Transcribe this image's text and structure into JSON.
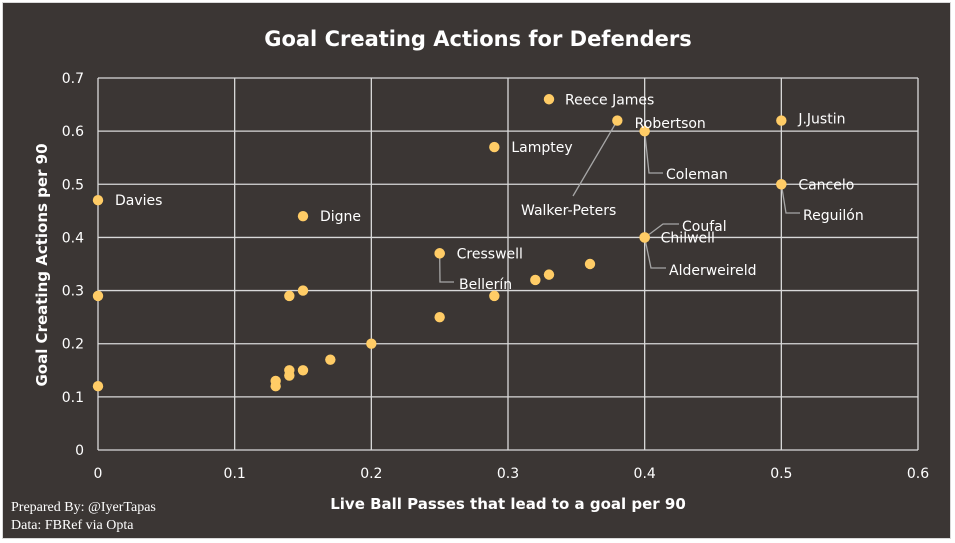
{
  "chart_data": {
    "type": "scatter",
    "title": "Goal Creating Actions for Defenders",
    "xlabel": "Live Ball Passes that lead to a goal per 90",
    "ylabel": "Goal Creating Actions per 90",
    "xlim": [
      0,
      0.6
    ],
    "ylim": [
      0,
      0.7
    ],
    "x_ticks": [
      "0",
      "0.1",
      "0.2",
      "0.3",
      "0.4",
      "0.5",
      "0.6"
    ],
    "y_ticks": [
      "0",
      "0.1",
      "0.2",
      "0.3",
      "0.4",
      "0.5",
      "0.6",
      "0.7"
    ],
    "grid": true,
    "marker_color": "#ffcc66",
    "points": [
      {
        "x": 0.33,
        "y": 0.66,
        "label": "Reece James"
      },
      {
        "x": 0.38,
        "y": 0.62,
        "label": "Walker-Peters"
      },
      {
        "x": 0.4,
        "y": 0.6,
        "label": "Robertson"
      },
      {
        "x": 0.5,
        "y": 0.62,
        "label": "J.Justin"
      },
      {
        "x": 0.29,
        "y": 0.57,
        "label": "Lamptey"
      },
      {
        "x": 0.4,
        "y": 0.6,
        "label": "Coleman"
      },
      {
        "x": 0.5,
        "y": 0.5,
        "label": "Cancelo"
      },
      {
        "x": 0.5,
        "y": 0.5,
        "label": "Reguilón"
      },
      {
        "x": 0.0,
        "y": 0.47,
        "label": "Davies"
      },
      {
        "x": 0.15,
        "y": 0.44,
        "label": "Digne"
      },
      {
        "x": 0.4,
        "y": 0.4,
        "label": "Coufal"
      },
      {
        "x": 0.4,
        "y": 0.4,
        "label": "Chilwell"
      },
      {
        "x": 0.4,
        "y": 0.4,
        "label": "Alderweireld"
      },
      {
        "x": 0.25,
        "y": 0.37,
        "label": "Cresswell"
      },
      {
        "x": 0.25,
        "y": 0.37,
        "label": "Bellerín"
      },
      {
        "x": 0.36,
        "y": 0.35,
        "label": ""
      },
      {
        "x": 0.33,
        "y": 0.33,
        "label": ""
      },
      {
        "x": 0.32,
        "y": 0.32,
        "label": ""
      },
      {
        "x": 0.15,
        "y": 0.3,
        "label": ""
      },
      {
        "x": 0.14,
        "y": 0.29,
        "label": ""
      },
      {
        "x": 0.29,
        "y": 0.29,
        "label": ""
      },
      {
        "x": 0.0,
        "y": 0.29,
        "label": ""
      },
      {
        "x": 0.25,
        "y": 0.25,
        "label": ""
      },
      {
        "x": 0.2,
        "y": 0.2,
        "label": ""
      },
      {
        "x": 0.17,
        "y": 0.17,
        "label": ""
      },
      {
        "x": 0.14,
        "y": 0.15,
        "label": ""
      },
      {
        "x": 0.15,
        "y": 0.15,
        "label": ""
      },
      {
        "x": 0.14,
        "y": 0.14,
        "label": ""
      },
      {
        "x": 0.13,
        "y": 0.13,
        "label": ""
      },
      {
        "x": 0.13,
        "y": 0.12,
        "label": ""
      },
      {
        "x": 0.0,
        "y": 0.12,
        "label": ""
      }
    ]
  },
  "credits": {
    "prepared_by": "Prepared By: @IyerTapas",
    "source": "Data: FBRef via Opta"
  }
}
